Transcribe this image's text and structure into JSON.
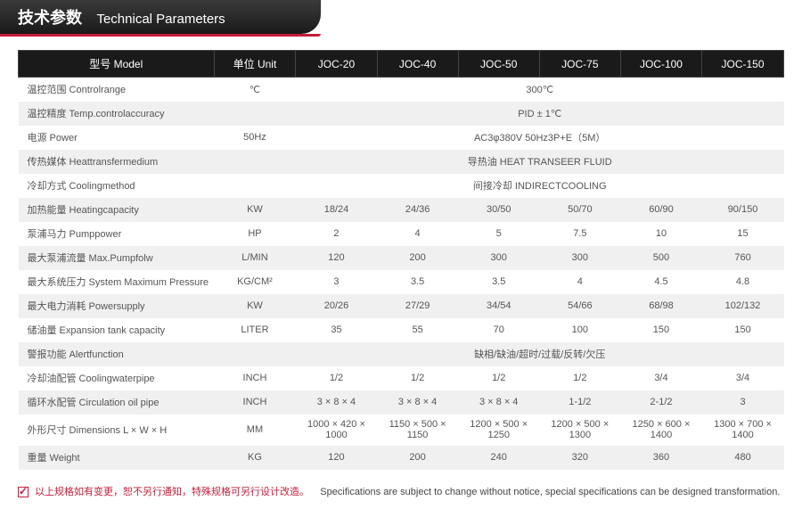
{
  "header": {
    "cn": "技术参数",
    "en": "Technical Parameters"
  },
  "table": {
    "columns": [
      "型号 Model",
      "单位 Unit",
      "JOC-20",
      "JOC-40",
      "JOC-50",
      "JOC-75",
      "JOC-100",
      "JOC-150"
    ],
    "col_widths": [
      "23%",
      "11%",
      "11%",
      "11%",
      "11%",
      "11%",
      "11%",
      "11%"
    ],
    "header_bg": "#1a1a1a",
    "header_color": "#ffffff",
    "row_alt_bg": "#f0f0f0",
    "text_color": "#555555",
    "font_size": 11,
    "rows": [
      {
        "label": "温控范围 Controlrange",
        "unit": "℃",
        "span": true,
        "value": "300℃"
      },
      {
        "label": "温控精度 Temp.controlaccuracy",
        "unit": "",
        "span": true,
        "value": "PID ± 1℃"
      },
      {
        "label": "电源 Power",
        "unit": "50Hz",
        "span": true,
        "value": "AC3φ380V 50Hz3P+E（5M）"
      },
      {
        "label": "传热媒体 Heattransfermedium",
        "unit": "",
        "span": true,
        "value": "导热油 HEAT TRANSEER FLUID"
      },
      {
        "label": "冷却方式 Coolingmethod",
        "unit": "",
        "span": true,
        "value": "间接冷却 INDIRECTCOOLING"
      },
      {
        "label": "加热能量 Heatingcapacity",
        "unit": "KW",
        "cells": [
          "18/24",
          "24/36",
          "30/50",
          "50/70",
          "60/90",
          "90/150"
        ]
      },
      {
        "label": "泵浦马力 Pumppower",
        "unit": "HP",
        "cells": [
          "2",
          "4",
          "5",
          "7.5",
          "10",
          "15"
        ]
      },
      {
        "label": "最大泵浦流量 Max.Pumpfolw",
        "unit": "L/MIN",
        "cells": [
          "120",
          "200",
          "300",
          "300",
          "500",
          "760"
        ]
      },
      {
        "label": "最大系统压力 System Maximum Pressure",
        "unit": "KG/CM²",
        "cells": [
          "3",
          "3.5",
          "3.5",
          "4",
          "4.5",
          "4.8"
        ]
      },
      {
        "label": "最大电力消耗 Powersupply",
        "unit": "KW",
        "cells": [
          "20/26",
          "27/29",
          "34/54",
          "54/66",
          "68/98",
          "102/132"
        ]
      },
      {
        "label": "储油量 Expansion tank capacity",
        "unit": "LITER",
        "cells": [
          "35",
          "55",
          "70",
          "100",
          "150",
          "150"
        ]
      },
      {
        "label": "警报功能 Alertfunction",
        "unit": "",
        "span": true,
        "value": "缺相/缺油/超时/过载/反转/欠压"
      },
      {
        "label": "冷却油配管 Coolingwaterpipe",
        "unit": "INCH",
        "cells": [
          "1/2",
          "1/2",
          "1/2",
          "1/2",
          "3/4",
          "3/4"
        ]
      },
      {
        "label": "循环水配管 Circulation oil pipe",
        "unit": "INCH",
        "cells": [
          "3 × 8 × 4",
          "3 × 8 × 4",
          "3 × 8 × 4",
          "1-1/2",
          "2-1/2",
          "3"
        ]
      },
      {
        "label": "外形尺寸 Dimensions L × W × H",
        "unit": "MM",
        "cells": [
          "1000 × 420 × 1000",
          "1150 × 500 × 1150",
          "1200 × 500 × 1250",
          "1200 × 500 × 1300",
          "1250 × 600 × 1400",
          "1300 × 700 × 1400"
        ]
      },
      {
        "label": "重量 Weight",
        "unit": "KG",
        "cells": [
          "120",
          "200",
          "240",
          "320",
          "360",
          "480"
        ]
      }
    ]
  },
  "footer": {
    "cn": "以上规格如有变更，恕不另行通知，特殊规格可另行设计改造。",
    "en": "Specifications are subject to change without notice, special specifications can be designed transformation.",
    "accent_color": "#c41e3a"
  }
}
